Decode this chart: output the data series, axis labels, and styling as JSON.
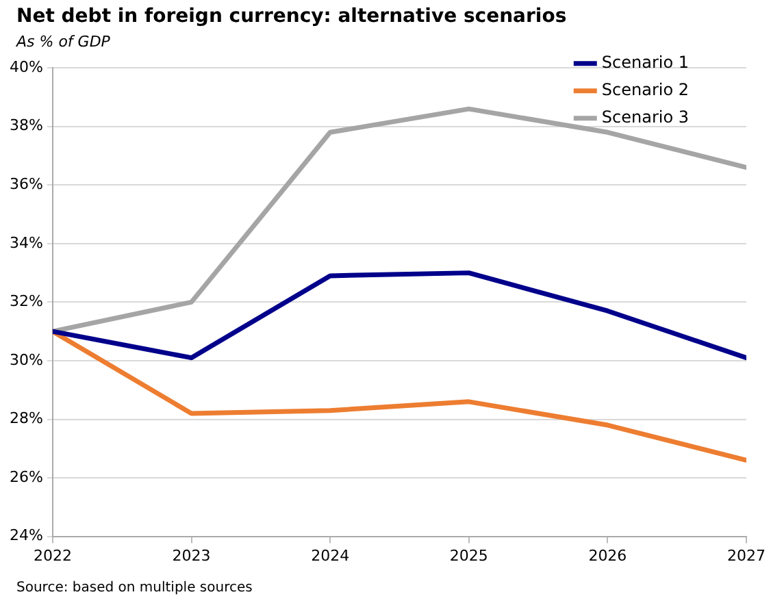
{
  "chart_data": {
    "type": "line",
    "title": "Net debt in foreign currency: alternative scenarios",
    "subtitle": "As % of GDP",
    "x": [
      2022,
      2023,
      2024,
      2025,
      2026,
      2027
    ],
    "xlim": [
      2022,
      2027
    ],
    "xticks": [
      2022,
      2023,
      2024,
      2025,
      2026,
      2027
    ],
    "ylim": [
      24,
      40
    ],
    "yticks": [
      {
        "value": 24,
        "label": "24%"
      },
      {
        "value": 26,
        "label": "26%"
      },
      {
        "value": 28,
        "label": "28%"
      },
      {
        "value": 30,
        "label": "30%"
      },
      {
        "value": 32,
        "label": "32%"
      },
      {
        "value": 34,
        "label": "34%"
      },
      {
        "value": 36,
        "label": "36%"
      },
      {
        "value": 38,
        "label": "38%"
      },
      {
        "value": 40,
        "label": "40%"
      }
    ],
    "grid": "y",
    "legend": "top right",
    "marker": "none",
    "line_style": "solid",
    "series": [
      {
        "name": "Scenario 1",
        "color": "#00008b",
        "values": [
          31.0,
          30.1,
          32.9,
          33.0,
          31.7,
          30.1
        ]
      },
      {
        "name": "Scenario 2",
        "color": "#ed7d31",
        "values": [
          31.0,
          28.2,
          28.3,
          28.6,
          27.8,
          26.6
        ]
      },
      {
        "name": "Scenario 3",
        "color": "#a5a5a5",
        "values": [
          31.0,
          32.0,
          37.8,
          38.6,
          37.8,
          36.6
        ]
      }
    ],
    "annotations": [
      "Source: based on multiple sources"
    ]
  }
}
